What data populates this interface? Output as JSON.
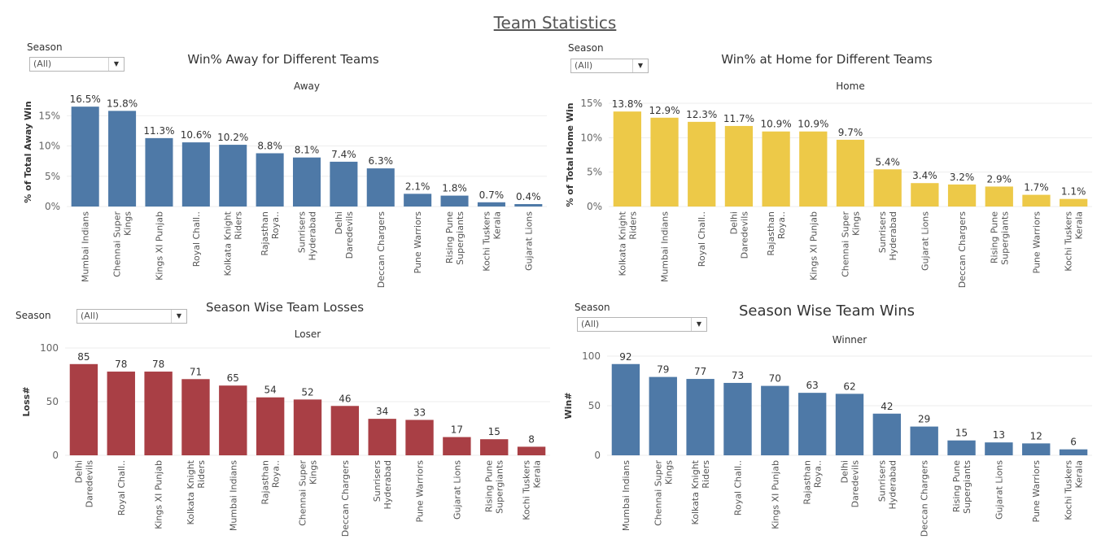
{
  "dashboard": {
    "title": "Team Statistics"
  },
  "panels": [
    {
      "id": "away",
      "filter": {
        "label": "Season",
        "value": "(All)"
      },
      "title": "Win% Away for Different Teams",
      "header": "Away",
      "color": "#4E79A7",
      "ytick_labels": [
        "15%",
        "10%",
        "5%",
        "0%"
      ]
    },
    {
      "id": "home",
      "filter": {
        "label": "Season",
        "value": "(All)"
      },
      "title": "Win% at Home for Different Teams",
      "header": "Home",
      "color": "#EDC948",
      "ytick_labels": [
        "15%",
        "10%",
        "5%",
        "0%"
      ]
    },
    {
      "id": "losses",
      "filter": {
        "label": "Season",
        "value": "(All)"
      },
      "title": "Season Wise Team Losses",
      "header": "Loser",
      "color": "#A93F45",
      "ytick_labels": [
        "100",
        "50",
        "0"
      ]
    },
    {
      "id": "wins",
      "filter": {
        "label": "Season",
        "value": "(All)"
      },
      "title": "Season Wise Team Wins",
      "header": "Winner",
      "color": "#4E79A7",
      "ytick_labels": [
        "100",
        "50",
        "0"
      ]
    }
  ],
  "chart_data": [
    {
      "type": "bar",
      "title": "Win% Away for Different Teams",
      "ylabel": "% of Total Away Win",
      "ylim": [
        0,
        18
      ],
      "categories": [
        "Mumbai Indians",
        "Chennai Super Kings",
        "Kings XI Punjab",
        "Royal Chall..",
        "Kolkata Knight Riders",
        "Rajasthan Roya..",
        "Sunrisers Hyderabad",
        "Delhi Daredevils",
        "Deccan Chargers",
        "Pune Warriors",
        "Rising Pune Supergiants",
        "Kochi Tuskers Kerala",
        "Gujarat Lions"
      ],
      "values": [
        16.5,
        15.8,
        11.3,
        10.6,
        10.2,
        8.8,
        8.1,
        7.4,
        6.3,
        2.1,
        1.8,
        0.7,
        0.4
      ],
      "value_labels": [
        "16.5%",
        "15.8%",
        "11.3%",
        "10.6%",
        "10.2%",
        "8.8%",
        "8.1%",
        "7.4%",
        "6.3%",
        "2.1%",
        "1.8%",
        "0.7%",
        "0.4%"
      ]
    },
    {
      "type": "bar",
      "title": "Win% at Home for Different Teams",
      "ylabel": "% of Total Home Win",
      "ylim": [
        0,
        15
      ],
      "categories": [
        "Kolkata Knight Riders",
        "Mumbai Indians",
        "Royal Chall..",
        "Delhi Daredevils",
        "Rajasthan Roya..",
        "Kings XI Punjab",
        "Chennai Super Kings",
        "Sunrisers Hyderabad",
        "Gujarat Lions",
        "Deccan Chargers",
        "Rising Pune Supergiants",
        "Pune Warriors",
        "Kochi Tuskers Kerala"
      ],
      "values": [
        13.8,
        12.9,
        12.3,
        11.7,
        10.9,
        10.9,
        9.7,
        5.4,
        3.4,
        3.2,
        2.9,
        1.7,
        1.1
      ],
      "value_labels": [
        "13.8%",
        "12.9%",
        "12.3%",
        "11.7%",
        "10.9%",
        "10.9%",
        "9.7%",
        "5.4%",
        "3.4%",
        "3.2%",
        "2.9%",
        "1.7%",
        "1.1%"
      ]
    },
    {
      "type": "bar",
      "title": "Season Wise Team Losses",
      "ylabel": "Loss#",
      "ylim": [
        0,
        100
      ],
      "categories": [
        "Delhi Daredevils",
        "Royal Chall..",
        "Kings XI Punjab",
        "Kolkata Knight Riders",
        "Mumbai Indians",
        "Rajasthan Roya..",
        "Chennai Super Kings",
        "Deccan Chargers",
        "Sunrisers Hyderabad",
        "Pune Warriors",
        "Gujarat Lions",
        "Rising Pune Supergiants",
        "Kochi Tuskers Kerala"
      ],
      "values": [
        85,
        78,
        78,
        71,
        65,
        54,
        52,
        46,
        34,
        33,
        17,
        15,
        8
      ],
      "value_labels": [
        "85",
        "78",
        "78",
        "71",
        "65",
        "54",
        "52",
        "46",
        "34",
        "33",
        "17",
        "15",
        "8"
      ]
    },
    {
      "type": "bar",
      "title": "Season Wise Team Wins",
      "ylabel": "Win#",
      "ylim": [
        0,
        100
      ],
      "categories": [
        "Mumbai Indians",
        "Chennai Super Kings",
        "Kolkata Knight Riders",
        "Royal Chall..",
        "Kings XI Punjab",
        "Rajasthan Roya..",
        "Delhi Daredevils",
        "Sunrisers Hyderabad",
        "Deccan Chargers",
        "Rising Pune Supergiants",
        "Gujarat Lions",
        "Pune Warriors",
        "Kochi Tuskers Kerala"
      ],
      "values": [
        92,
        79,
        77,
        73,
        70,
        63,
        62,
        42,
        29,
        15,
        13,
        12,
        6
      ],
      "value_labels": [
        "92",
        "79",
        "77",
        "73",
        "70",
        "63",
        "62",
        "42",
        "29",
        "15",
        "13",
        "12",
        "6"
      ]
    }
  ]
}
